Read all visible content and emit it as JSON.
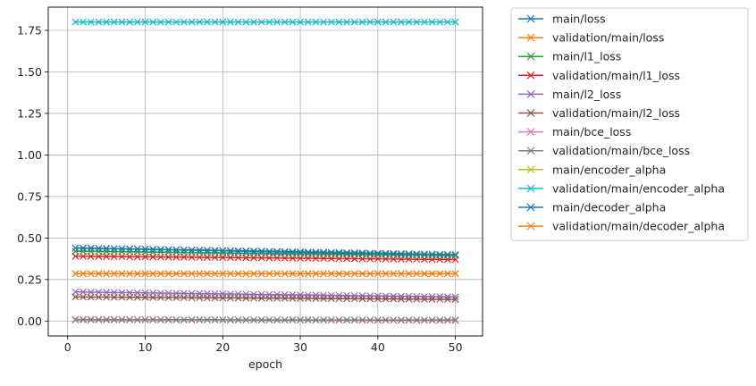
{
  "chart_data": {
    "type": "line",
    "title": "",
    "xlabel": "epoch",
    "ylabel": "",
    "xlim": [
      -2.5,
      53.5
    ],
    "ylim": [
      -0.09,
      1.89
    ],
    "xticks": [
      0,
      10,
      20,
      30,
      40,
      50
    ],
    "yticks": [
      0.0,
      0.25,
      0.5,
      0.75,
      1.0,
      1.25,
      1.5,
      1.75
    ],
    "grid": true,
    "legend_placement": "outside-right-top",
    "marker": "x",
    "x": {
      "start": 1,
      "end": 50,
      "step": 1
    },
    "series": [
      {
        "name": "main/loss",
        "color": "#1f77b4",
        "start": 0.44,
        "end": 0.395
      },
      {
        "name": "validation/main/loss",
        "color": "#ff7f0e",
        "start": 0.285,
        "end": 0.285
      },
      {
        "name": "main/l1_loss",
        "color": "#2ca02c",
        "start": 0.42,
        "end": 0.395
      },
      {
        "name": "validation/main/l1_loss",
        "color": "#d62728",
        "start": 0.39,
        "end": 0.37
      },
      {
        "name": "main/l2_loss",
        "color": "#9467bd",
        "start": 0.175,
        "end": 0.145
      },
      {
        "name": "validation/main/l2_loss",
        "color": "#8c564b",
        "start": 0.145,
        "end": 0.13
      },
      {
        "name": "main/bce_loss",
        "color": "#e377c2",
        "start": 0.01,
        "end": 0.003
      },
      {
        "name": "validation/main/bce_loss",
        "color": "#7f7f7f",
        "start": 0.007,
        "end": 0.006
      },
      {
        "name": "main/encoder_alpha",
        "color": "#bcbd22",
        "start": 1.8,
        "end": 1.8
      },
      {
        "name": "validation/main/encoder_alpha",
        "color": "#17becf",
        "start": 1.8,
        "end": 1.8
      },
      {
        "name": "main/decoder_alpha",
        "color": "#1f77b4",
        "start": 0.44,
        "end": 0.4
      },
      {
        "name": "validation/main/decoder_alpha",
        "color": "#ff7f0e",
        "start": 0.285,
        "end": 0.285
      }
    ]
  }
}
